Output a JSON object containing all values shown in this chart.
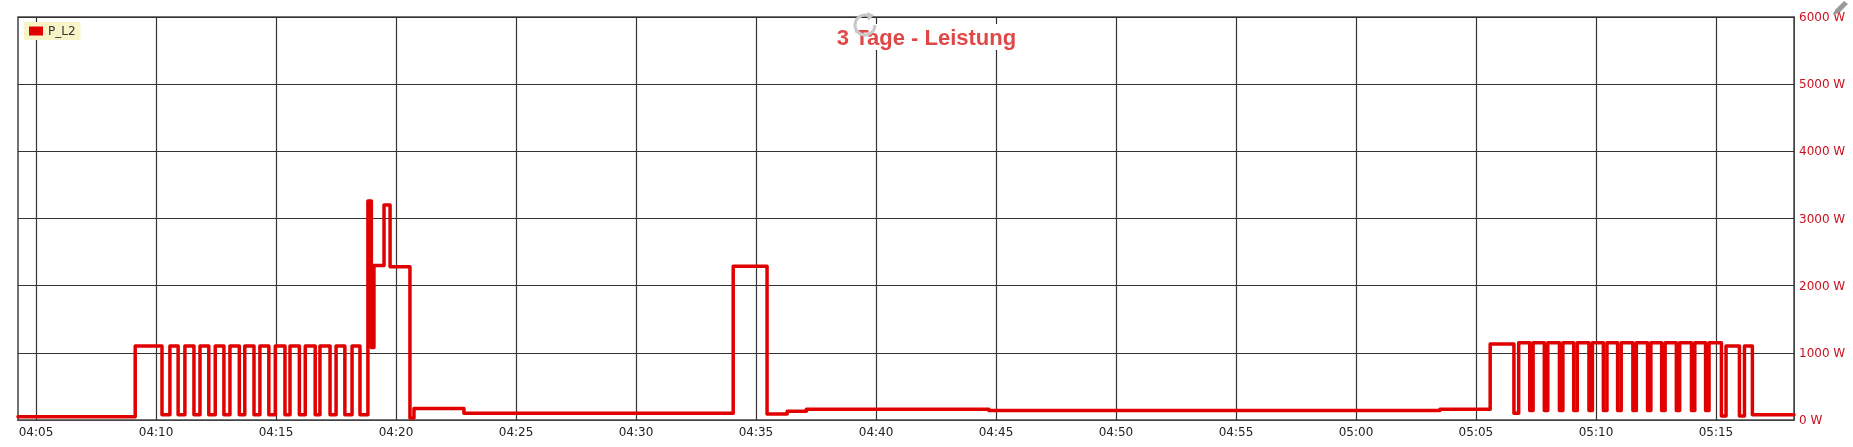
{
  "chart_data": {
    "type": "step",
    "title": "3 Tage - Leistung",
    "x": [
      4.0708,
      4.1522,
      4.1708,
      4.1763,
      4.182,
      4.1867,
      4.193,
      4.1972,
      4.2033,
      4.2078,
      4.2138,
      4.218,
      4.2245,
      4.2283,
      4.2347,
      4.2388,
      4.245,
      4.2495,
      4.2562,
      4.2597,
      4.2662,
      4.2703,
      4.2772,
      4.2805,
      4.2875,
      4.2917,
      4.2978,
      4.3028,
      4.3083,
      4.3138,
      4.3162,
      4.318,
      4.325,
      4.3292,
      4.343,
      4.3458,
      4.3805,
      4.5675,
      4.591,
      4.605,
      4.6183,
      4.745,
      5.0583,
      5.0932,
      5.1097,
      5.113,
      5.1207,
      5.123,
      5.1308,
      5.1332,
      5.1413,
      5.1437,
      5.1512,
      5.1537,
      5.1618,
      5.1642,
      5.1718,
      5.1743,
      5.1817,
      5.1842,
      5.1923,
      5.1947,
      5.2025,
      5.2048,
      5.2123,
      5.2147,
      5.2225,
      5.2248,
      5.233,
      5.2353,
      5.2428,
      5.2452,
      5.2538,
      5.257,
      5.2663,
      5.2698,
      5.2753,
      5.3042
    ],
    "series": [
      {
        "name": "P_L2",
        "color": "#e00000",
        "values": [
          50,
          1100,
          80,
          1100,
          80,
          1100,
          80,
          1100,
          80,
          1100,
          80,
          1100,
          80,
          1100,
          80,
          1100,
          80,
          1100,
          80,
          1100,
          80,
          1100,
          80,
          1100,
          80,
          1100,
          80,
          1100,
          80,
          3260,
          1080,
          2300,
          3200,
          2280,
          30,
          170,
          100,
          2290,
          90,
          130,
          160,
          140,
          160,
          1130,
          100,
          1150,
          140,
          1150,
          140,
          1150,
          140,
          1150,
          140,
          1150,
          140,
          1150,
          140,
          1150,
          140,
          1150,
          140,
          1150,
          140,
          1150,
          140,
          1150,
          140,
          1150,
          140,
          1150,
          140,
          1150,
          60,
          1100,
          60,
          1100,
          80,
          80
        ]
      }
    ],
    "xlim": [
      4.0708,
      5.3042
    ],
    "xticks": [
      {
        "value": 4.0833,
        "label": "04:05"
      },
      {
        "value": 4.1667,
        "label": "04:10"
      },
      {
        "value": 4.25,
        "label": "04:15"
      },
      {
        "value": 4.3333,
        "label": "04:20"
      },
      {
        "value": 4.4167,
        "label": "04:25"
      },
      {
        "value": 4.5,
        "label": "04:30"
      },
      {
        "value": 4.5833,
        "label": "04:35"
      },
      {
        "value": 4.6667,
        "label": "04:40"
      },
      {
        "value": 4.75,
        "label": "04:45"
      },
      {
        "value": 4.8333,
        "label": "04:50"
      },
      {
        "value": 4.9167,
        "label": "04:55"
      },
      {
        "value": 5,
        "label": "05:00"
      },
      {
        "value": 5.0833,
        "label": "05:05"
      },
      {
        "value": 5.1667,
        "label": "05:10"
      },
      {
        "value": 5.25,
        "label": "05:15"
      }
    ],
    "ylim": [
      0,
      6000
    ],
    "yticks": [
      {
        "value": 0,
        "label": "0 W"
      },
      {
        "value": 1000,
        "label": "1000 W"
      },
      {
        "value": 2000,
        "label": "2000 W"
      },
      {
        "value": 3000,
        "label": "3000 W"
      },
      {
        "value": 4000,
        "label": "4000 W"
      },
      {
        "value": 5000,
        "label": "5000 W"
      },
      {
        "value": 6000,
        "label": "6000 W"
      }
    ],
    "grid": true,
    "legend": "top left",
    "marker": "none",
    "line_style": "solid"
  }
}
